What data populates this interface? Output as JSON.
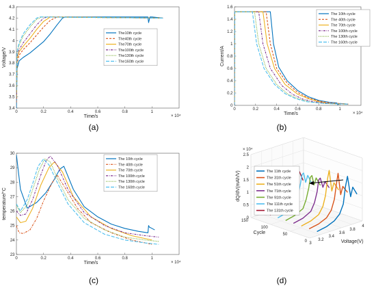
{
  "figure": {
    "captions": [
      "(a)",
      "(b)",
      "(c)",
      "(d)"
    ]
  },
  "chart_data": [
    {
      "type": "line",
      "panel": "(a)",
      "xlabel": "Time/s",
      "ylabel": "Voltage/V",
      "x_exponent": "× 10⁴",
      "xlim": [
        0,
        1.2
      ],
      "ylim": [
        3.4,
        4.3
      ],
      "xticks": [
        0,
        0.2,
        0.4,
        0.6,
        0.8,
        1
      ],
      "yticks": [
        3.4,
        3.5,
        3.6,
        3.7,
        3.8,
        3.9,
        4.0,
        4.1,
        4.2,
        4.3
      ],
      "ytick_labels": [
        "3.4",
        "3.5",
        "3.6",
        "3.7",
        "3.8",
        "3.9",
        "4",
        "4.1",
        "4.2",
        "4.3"
      ],
      "legend_position": "right",
      "grid": false,
      "series": [
        {
          "name": "The10th cycle",
          "color": "#0072BD",
          "dash": "solid",
          "x": [
            0,
            0.005,
            0.02,
            0.05,
            0.1,
            0.15,
            0.2,
            0.25,
            0.3,
            0.34,
            0.36,
            0.5,
            0.7,
            0.95,
            0.97,
            0.975,
            0.985,
            1.0,
            1.08
          ],
          "y": [
            3.4,
            3.75,
            3.82,
            3.85,
            3.89,
            3.94,
            3.99,
            4.06,
            4.14,
            4.2,
            4.21,
            4.21,
            4.21,
            4.21,
            4.21,
            4.16,
            4.21,
            4.21,
            4.2
          ]
        },
        {
          "name": "The40th cycle",
          "color": "#D95319",
          "dash": "dash",
          "x": [
            0,
            0.005,
            0.02,
            0.05,
            0.1,
            0.15,
            0.2,
            0.25,
            0.3,
            0.32,
            1.08
          ],
          "y": [
            3.45,
            3.8,
            3.87,
            3.92,
            3.98,
            4.05,
            4.12,
            4.18,
            4.21,
            4.21,
            4.2
          ]
        },
        {
          "name": "The70th cycle",
          "color": "#EDB120",
          "dash": "solid",
          "x": [
            0,
            0.005,
            0.02,
            0.05,
            0.1,
            0.15,
            0.2,
            0.25,
            0.28,
            1.08
          ],
          "y": [
            3.5,
            3.84,
            3.9,
            3.95,
            4.02,
            4.1,
            4.17,
            4.21,
            4.21,
            4.2
          ]
        },
        {
          "name": "The100th cycle",
          "color": "#7E2F8E",
          "dash": "dashdot",
          "x": [
            0,
            0.005,
            0.02,
            0.05,
            0.1,
            0.15,
            0.2,
            0.23,
            1.08
          ],
          "y": [
            3.52,
            3.86,
            3.92,
            3.98,
            4.06,
            4.14,
            4.2,
            4.21,
            4.2
          ]
        },
        {
          "name": "The130th cycle",
          "color": "#77AC30",
          "dash": "dot",
          "x": [
            0,
            0.005,
            0.02,
            0.05,
            0.1,
            0.15,
            0.19,
            1.08
          ],
          "y": [
            3.55,
            3.89,
            3.96,
            4.04,
            4.12,
            4.19,
            4.21,
            4.2
          ]
        },
        {
          "name": "The160th cycle",
          "color": "#4DBEEE",
          "dash": "longdash",
          "x": [
            0,
            0.005,
            0.02,
            0.05,
            0.1,
            0.15,
            0.17,
            1.08
          ],
          "y": [
            3.56,
            3.9,
            3.98,
            4.06,
            4.14,
            4.2,
            4.21,
            4.2
          ]
        }
      ]
    },
    {
      "type": "line",
      "panel": "(b)",
      "xlabel": "Time/s",
      "ylabel": "Current/A",
      "x_exponent": "× 10⁴",
      "xlim": [
        0,
        1.2
      ],
      "ylim": [
        0,
        1.6
      ],
      "xticks": [
        0,
        0.2,
        0.4,
        0.6,
        0.8,
        1
      ],
      "yticks": [
        0,
        0.2,
        0.4,
        0.6,
        0.8,
        1.0,
        1.2,
        1.4,
        1.6
      ],
      "ytick_labels": [
        "0",
        "0.2",
        "0.4",
        "0.6",
        "0.8",
        "1",
        "1.2",
        "1.4",
        "1.6"
      ],
      "legend_position": "top-right",
      "grid": false,
      "series": [
        {
          "name": "The 10th cycle",
          "color": "#0072BD",
          "dash": "solid",
          "x": [
            0,
            0.002,
            0.34,
            0.37,
            0.42,
            0.5,
            0.6,
            0.7,
            0.8,
            0.9,
            0.97,
            0.98,
            1.0,
            1.08
          ],
          "y": [
            0,
            1.52,
            1.52,
            1.0,
            0.62,
            0.4,
            0.24,
            0.14,
            0.08,
            0.05,
            0.04,
            0.01,
            0.03,
            0.02
          ]
        },
        {
          "name": "The 40th cycle",
          "color": "#D95319",
          "dash": "dash",
          "x": [
            0,
            0.002,
            0.3,
            0.34,
            0.4,
            0.5,
            0.6,
            0.7,
            0.8,
            0.9,
            1.08
          ],
          "y": [
            0,
            1.52,
            1.52,
            1.0,
            0.6,
            0.36,
            0.21,
            0.12,
            0.07,
            0.04,
            0.02
          ]
        },
        {
          "name": "The 70th cycle",
          "color": "#EDB120",
          "dash": "solid",
          "x": [
            0,
            0.002,
            0.27,
            0.31,
            0.38,
            0.48,
            0.6,
            0.7,
            0.8,
            0.9,
            1.08
          ],
          "y": [
            0,
            1.52,
            1.52,
            1.0,
            0.6,
            0.34,
            0.18,
            0.11,
            0.06,
            0.03,
            0.02
          ]
        },
        {
          "name": "The 100th cycle",
          "color": "#7E2F8E",
          "dash": "dashdot",
          "x": [
            0,
            0.002,
            0.23,
            0.27,
            0.34,
            0.45,
            0.55,
            0.65,
            0.75,
            0.9,
            1.08
          ],
          "y": [
            0,
            1.52,
            1.52,
            1.0,
            0.6,
            0.32,
            0.18,
            0.1,
            0.06,
            0.03,
            0.02
          ]
        },
        {
          "name": "The 130th cycle",
          "color": "#77AC30",
          "dash": "dot",
          "x": [
            0,
            0.002,
            0.19,
            0.23,
            0.3,
            0.4,
            0.5,
            0.6,
            0.7,
            0.85,
            1.08
          ],
          "y": [
            0,
            1.52,
            1.52,
            1.0,
            0.6,
            0.34,
            0.19,
            0.11,
            0.06,
            0.03,
            0.02
          ]
        },
        {
          "name": "The 160th cycle",
          "color": "#4DBEEE",
          "dash": "longdash",
          "x": [
            0,
            0.002,
            0.17,
            0.21,
            0.28,
            0.38,
            0.48,
            0.58,
            0.68,
            0.85,
            1.08
          ],
          "y": [
            0,
            1.52,
            1.52,
            1.0,
            0.6,
            0.34,
            0.19,
            0.11,
            0.06,
            0.03,
            0.02
          ]
        }
      ]
    },
    {
      "type": "line",
      "panel": "(c)",
      "xlabel": "Time/s",
      "ylabel": "temperature/°C",
      "x_exponent": "× 10⁴",
      "xlim": [
        0,
        1.2
      ],
      "ylim": [
        23,
        30
      ],
      "xticks": [
        0,
        0.2,
        0.4,
        0.6,
        0.8,
        1
      ],
      "yticks": [
        23,
        24,
        25,
        26,
        27,
        28,
        29,
        30
      ],
      "ytick_labels": [
        "23",
        "24",
        "25",
        "26",
        "27",
        "28",
        "29",
        "30"
      ],
      "legend_position": "top-right",
      "grid": false,
      "series": [
        {
          "name": "The 10th cycle",
          "color": "#0072BD",
          "dash": "solid",
          "x": [
            0,
            0.03,
            0.08,
            0.15,
            0.22,
            0.28,
            0.32,
            0.35,
            0.42,
            0.5,
            0.6,
            0.7,
            0.8,
            0.9,
            0.97,
            0.975,
            0.98,
            1.0,
            1.02
          ],
          "y": [
            29.9,
            27.5,
            26.2,
            26.6,
            27.3,
            28.2,
            28.9,
            29.1,
            27.5,
            26.3,
            25.6,
            25.1,
            24.8,
            24.6,
            24.5,
            25.0,
            24.9,
            24.8,
            24.7
          ]
        },
        {
          "name": "The 40th cycle",
          "color": "#D95319",
          "dash": "dashdot",
          "x": [
            0,
            0.02,
            0.05,
            0.1,
            0.15,
            0.2,
            0.26,
            0.3,
            0.36,
            0.45,
            0.55,
            0.7,
            0.85,
            1.0
          ],
          "y": [
            25.0,
            24.5,
            24.45,
            24.7,
            25.5,
            26.7,
            27.9,
            28.5,
            27.6,
            26.2,
            25.2,
            24.5,
            24.0,
            23.7
          ]
        },
        {
          "name": "The 70th cycle",
          "color": "#EDB120",
          "dash": "solid",
          "x": [
            0,
            0.03,
            0.07,
            0.12,
            0.18,
            0.24,
            0.28,
            0.34,
            0.42,
            0.55,
            0.7,
            0.85,
            1.0
          ],
          "y": [
            25.6,
            25.2,
            25.3,
            26.2,
            27.8,
            29.0,
            29.4,
            28.7,
            27.0,
            25.6,
            24.8,
            24.3,
            24.0
          ]
        },
        {
          "name": "The 100th cycle",
          "color": "#7E2F8E",
          "dash": "dashdot",
          "x": [
            0,
            0.03,
            0.07,
            0.12,
            0.18,
            0.22,
            0.25,
            0.3,
            0.38,
            0.5,
            0.65,
            0.8,
            0.95,
            1.05
          ],
          "y": [
            26.0,
            25.7,
            25.8,
            26.8,
            28.5,
            29.5,
            29.8,
            29.2,
            27.5,
            25.9,
            25.0,
            24.5,
            24.3,
            24.2
          ]
        },
        {
          "name": "The 130th cycle",
          "color": "#77AC30",
          "dash": "dot",
          "x": [
            0,
            0.03,
            0.08,
            0.12,
            0.17,
            0.21,
            0.25,
            0.3,
            0.38,
            0.5,
            0.65,
            0.8,
            0.95,
            1.05
          ],
          "y": [
            26.4,
            25.9,
            26.4,
            27.5,
            28.9,
            29.6,
            29.4,
            28.3,
            26.8,
            25.5,
            24.7,
            24.2,
            24.0,
            23.9
          ]
        },
        {
          "name": "The 160th cycle",
          "color": "#4DBEEE",
          "dash": "longdash",
          "x": [
            0,
            0.03,
            0.08,
            0.12,
            0.16,
            0.2,
            0.24,
            0.3,
            0.38,
            0.5,
            0.65,
            0.8,
            0.95,
            1.05
          ],
          "y": [
            26.5,
            26.0,
            26.8,
            27.9,
            29.1,
            29.6,
            29.2,
            28.0,
            26.5,
            25.2,
            24.4,
            24.0,
            23.8,
            23.7
          ]
        }
      ]
    },
    {
      "type": "line",
      "panel": "(d)",
      "xlabel": "Voltage(V)",
      "ylabel": "dQ/dV(mAh/V)",
      "zlabel_role": "depth",
      "depth_label": "Cycle",
      "y_exponent": "× 10⁴",
      "xticks": [
        3,
        3.2,
        3.4,
        3.6,
        3.8,
        4
      ],
      "depth_ticks": [
        0,
        50,
        100,
        150
      ],
      "yticks": [
        0,
        0.5,
        1,
        1.5,
        2,
        2.5
      ],
      "ytick_labels": [
        "0",
        "0.5",
        "1",
        "1.5",
        "2",
        "2.5"
      ],
      "legend_position": "top-left",
      "annotation": "arrow pointing from later cycles' peaks toward earlier-voltage peaks",
      "series": [
        {
          "name": "The 11th cycle",
          "color": "#0072BD",
          "cycle": 11,
          "v": [
            3.22,
            3.4,
            3.55,
            3.65,
            3.72,
            3.76,
            3.8,
            3.86,
            3.9,
            3.98
          ],
          "y": [
            0.05,
            0.12,
            0.25,
            0.45,
            0.8,
            1.45,
            1.85,
            1.0,
            1.35,
            1.02
          ]
        },
        {
          "name": "The 31th cycle",
          "color": "#D95319",
          "cycle": 31,
          "v": [
            3.22,
            3.4,
            3.55,
            3.64,
            3.7,
            3.74,
            3.77,
            3.82,
            3.86,
            3.95
          ],
          "y": [
            0.05,
            0.12,
            0.26,
            0.5,
            0.9,
            1.5,
            1.88,
            1.0,
            1.3,
            1.0
          ]
        },
        {
          "name": "The 51th cycle",
          "color": "#EDB120",
          "cycle": 51,
          "v": [
            3.22,
            3.4,
            3.55,
            3.63,
            3.68,
            3.72,
            3.75,
            3.8,
            3.84,
            3.93
          ],
          "y": [
            0.05,
            0.13,
            0.28,
            0.55,
            0.95,
            1.6,
            1.9,
            1.05,
            1.35,
            1.0
          ]
        },
        {
          "name": "The 71th cycle",
          "color": "#7E2F8E",
          "cycle": 71,
          "v": [
            3.22,
            3.4,
            3.55,
            3.62,
            3.67,
            3.7,
            3.73,
            3.78,
            3.82,
            3.9
          ],
          "y": [
            0.05,
            0.13,
            0.3,
            0.6,
            1.0,
            1.45,
            1.5,
            1.1,
            1.3,
            1.0
          ]
        },
        {
          "name": "The 91th cycle",
          "color": "#77AC30",
          "cycle": 91,
          "v": [
            3.22,
            3.4,
            3.55,
            3.61,
            3.66,
            3.69,
            3.72,
            3.76,
            3.8,
            3.88
          ],
          "y": [
            0.05,
            0.14,
            0.3,
            0.62,
            1.05,
            1.45,
            1.5,
            1.1,
            1.35,
            1.0
          ]
        },
        {
          "name": "The 111th cycle",
          "color": "#4DBEEE",
          "cycle": 111,
          "v": [
            3.22,
            3.4,
            3.55,
            3.6,
            3.65,
            3.68,
            3.71,
            3.75,
            3.79,
            3.86
          ],
          "y": [
            0.05,
            0.14,
            0.32,
            0.65,
            1.1,
            1.45,
            1.5,
            1.1,
            1.35,
            1.0
          ]
        },
        {
          "name": "The 131th cycle",
          "color": "#A2142F",
          "cycle": 131,
          "v": [
            3.22,
            3.4,
            3.55,
            3.59,
            3.64,
            3.67,
            3.7,
            3.74,
            3.78,
            3.85
          ],
          "y": [
            0.05,
            0.15,
            0.33,
            0.68,
            1.15,
            1.45,
            1.5,
            1.1,
            1.4,
            1.0
          ]
        }
      ]
    }
  ]
}
